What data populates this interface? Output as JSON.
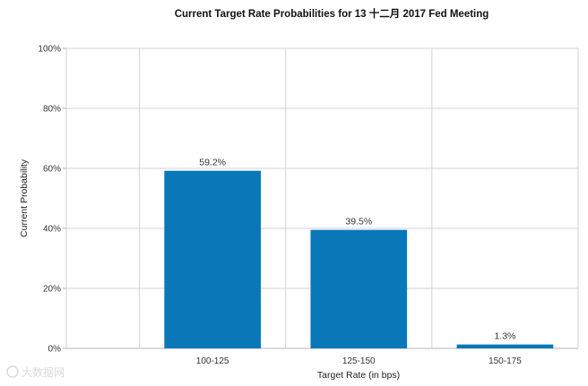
{
  "chart_data": {
    "type": "bar",
    "title": "Current Target Rate Probabilities for 13 十二月 2017 Fed Meeting",
    "xlabel": "Target Rate (in bps)",
    "ylabel": "Current Probability",
    "categories": [
      "100-125",
      "125-150",
      "150-175"
    ],
    "values": [
      59.2,
      39.5,
      1.3
    ],
    "data_labels": [
      "59.2%",
      "39.5%",
      "1.3%"
    ],
    "ylim": [
      0,
      100
    ],
    "yticks": [
      0,
      20,
      40,
      60,
      80,
      100
    ],
    "ytick_labels": [
      "0%",
      "20%",
      "40%",
      "60%",
      "80%",
      "100%"
    ],
    "grid": true,
    "legend": "none",
    "bar_color": "#0a78b8",
    "grid_color": "#d8cdd8"
  },
  "watermark": "大数据网"
}
